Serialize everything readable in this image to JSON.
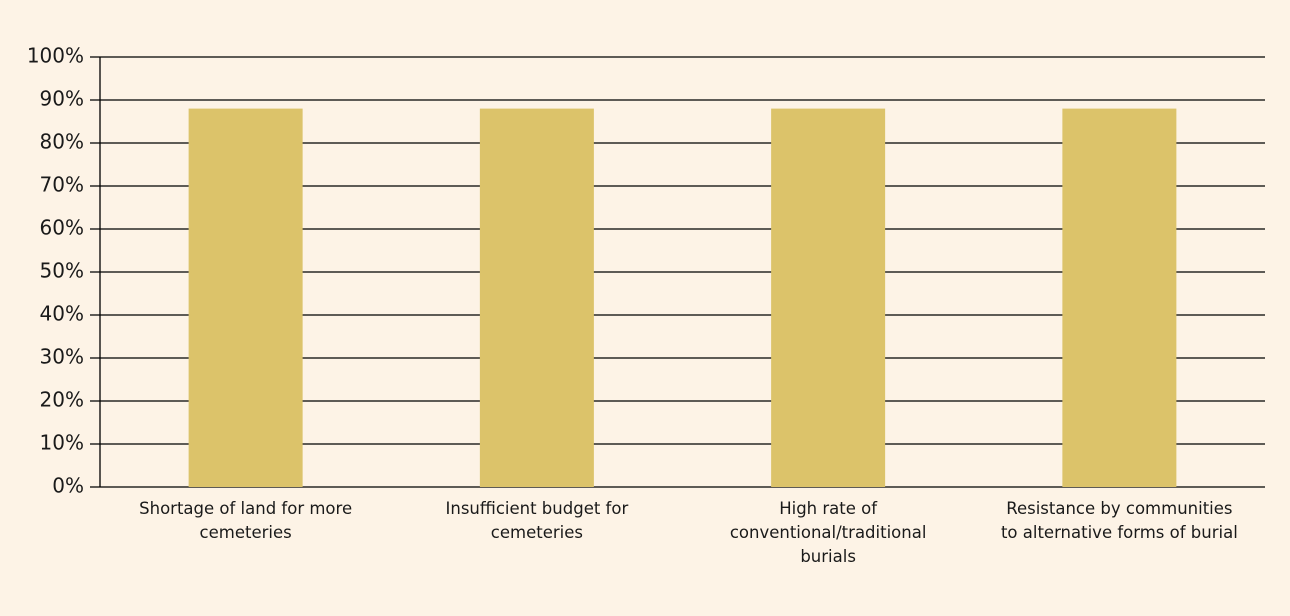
{
  "chart_data": {
    "type": "bar",
    "categories": [
      "Shortage of land for more cemeteries",
      "Insufficient budget for cemeteries",
      "High rate of conventional/traditional burials",
      "Resistance by communities to alternative forms of burial"
    ],
    "values": [
      88,
      88,
      88,
      88
    ],
    "color": "#dcc36a",
    "ylim": [
      0,
      100
    ],
    "yticks": [
      {
        "value": 0,
        "label": "0%"
      },
      {
        "value": 10,
        "label": "10%"
      },
      {
        "value": 20,
        "label": "20%"
      },
      {
        "value": 30,
        "label": "30%"
      },
      {
        "value": 40,
        "label": "40%"
      },
      {
        "value": 50,
        "label": "50%"
      },
      {
        "value": 60,
        "label": "60%"
      },
      {
        "value": 70,
        "label": "70%"
      },
      {
        "value": 80,
        "label": "80%"
      },
      {
        "value": 90,
        "label": "90%"
      },
      {
        "value": 100,
        "label": "100%"
      }
    ],
    "grid": true
  }
}
